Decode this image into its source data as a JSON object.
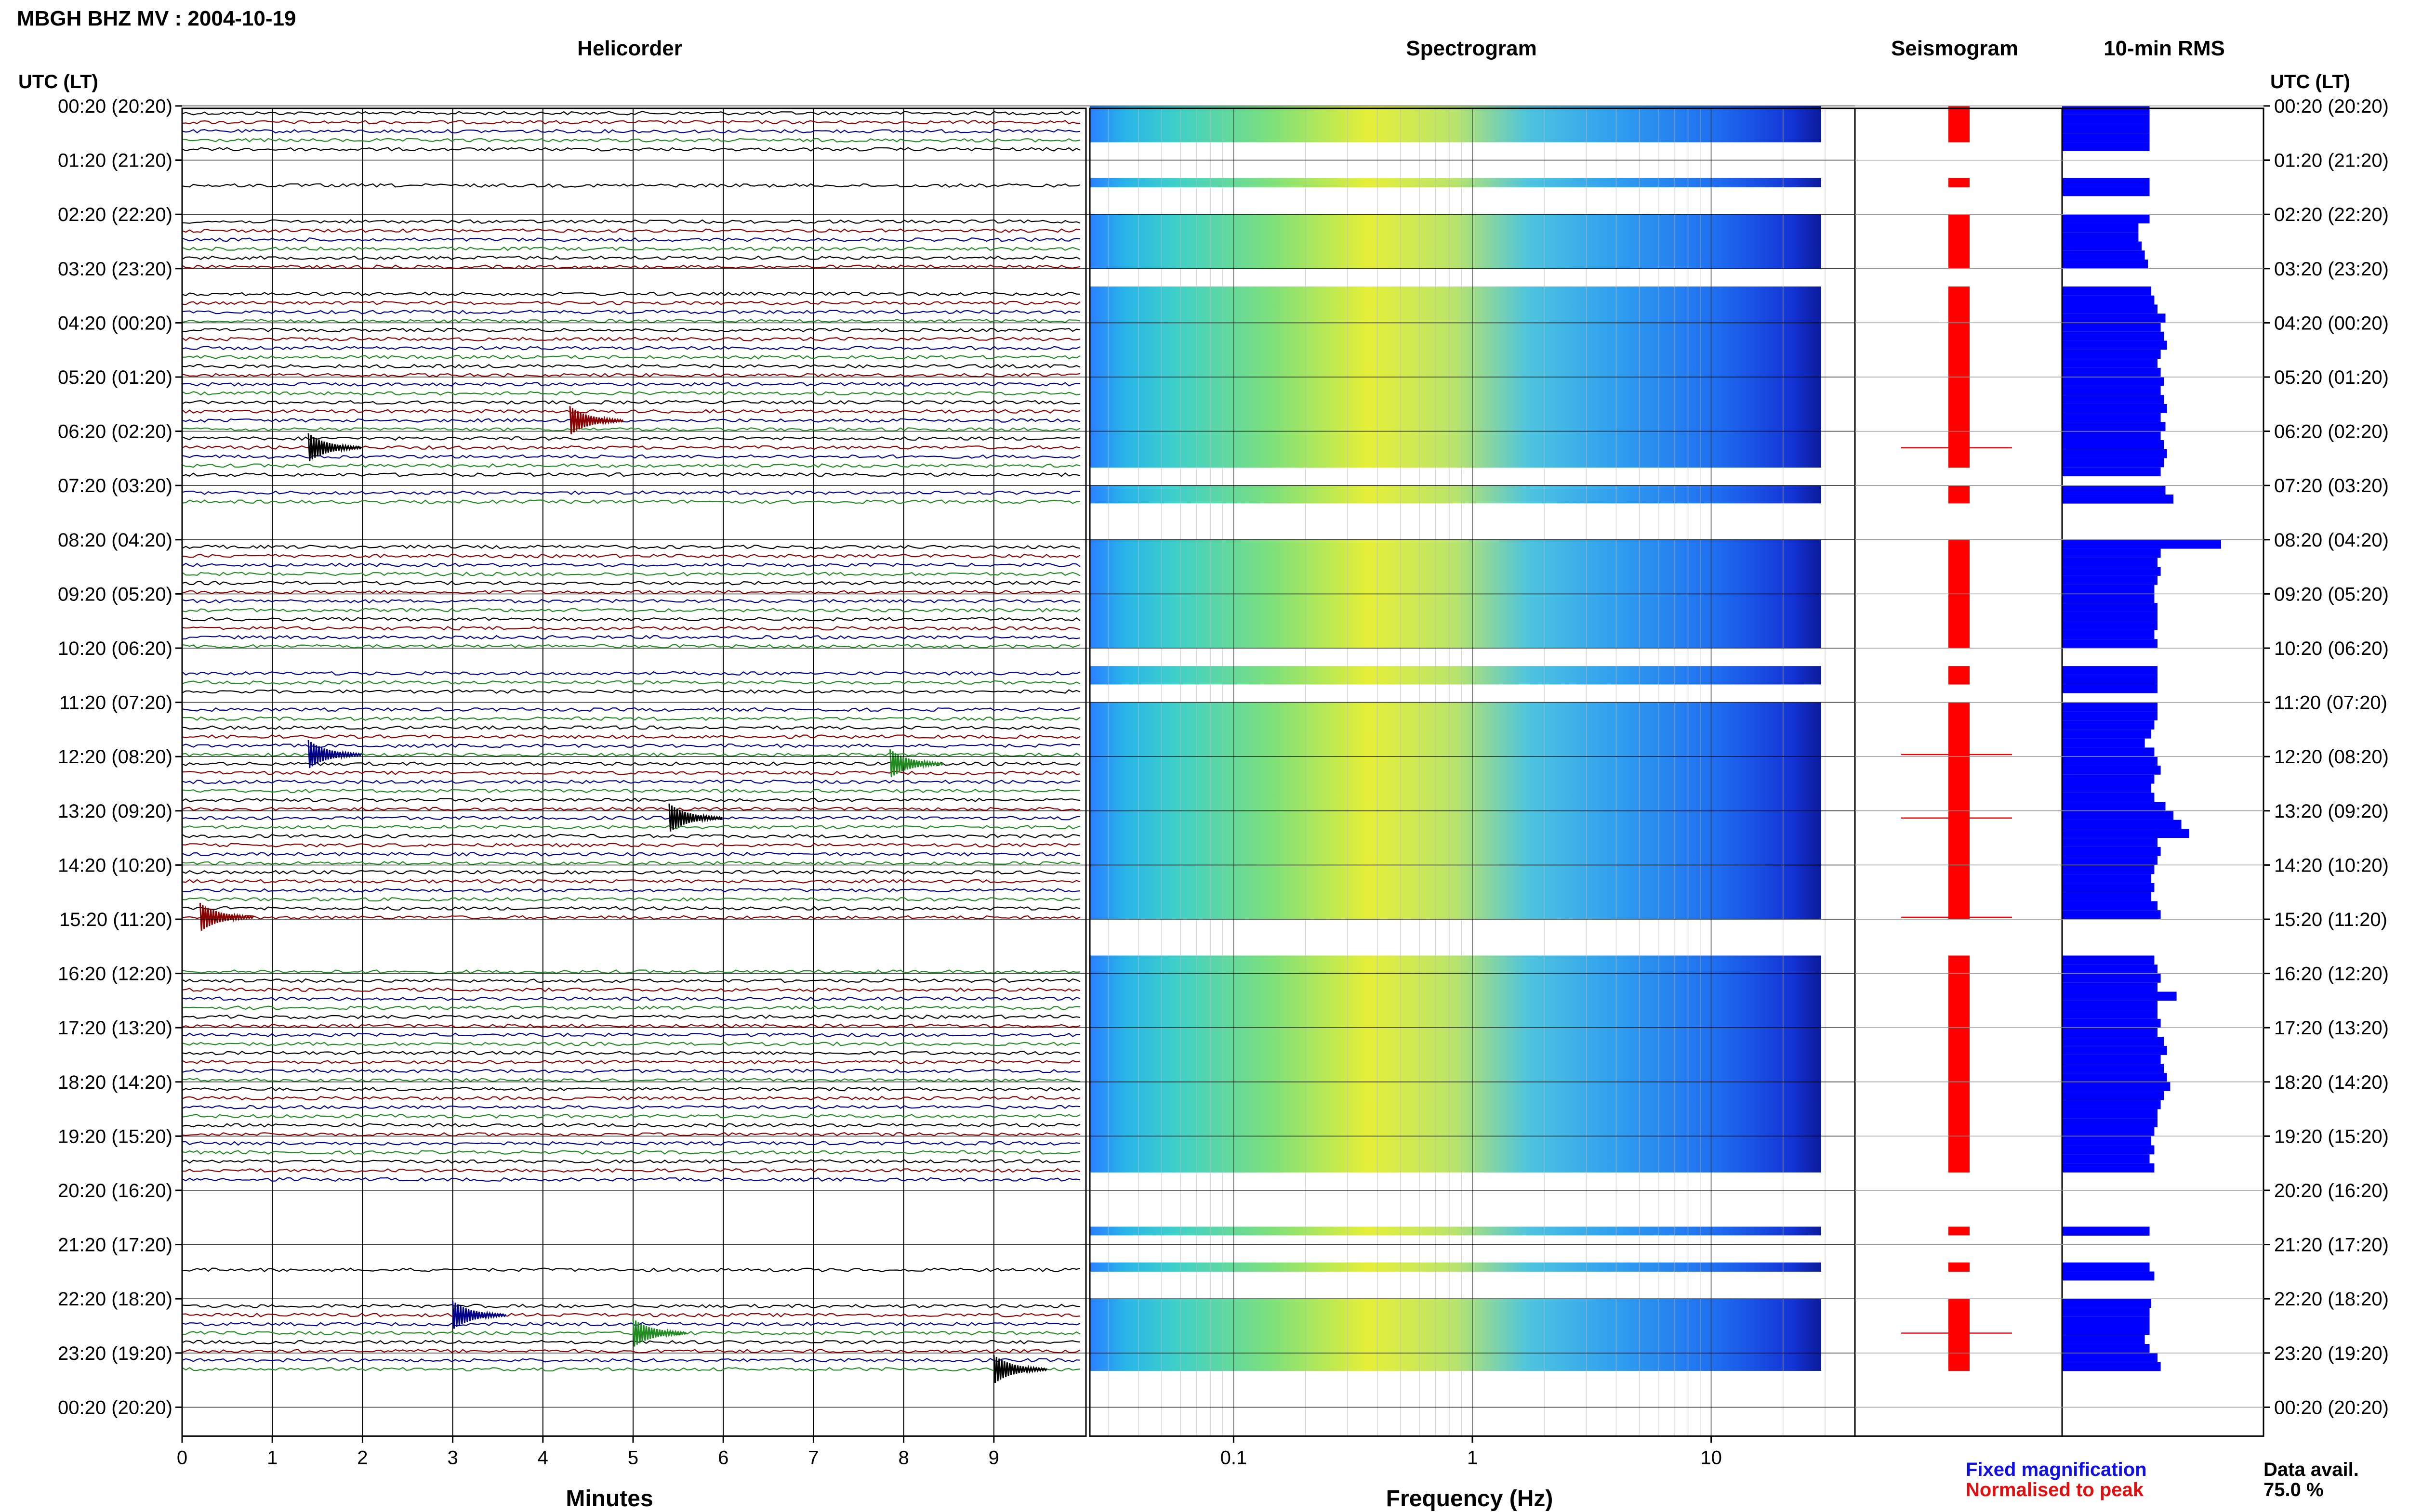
{
  "header": {
    "title": "MBGH BHZ MV : 2004-10-19",
    "utc_label": "UTC (LT)"
  },
  "panels": {
    "helicorder": "Helicorder",
    "spectrogram": "Spectrogram",
    "seismogram": "Seismogram",
    "rms": "10-min RMS"
  },
  "footer": {
    "helicorder_xlabel": "Minutes",
    "spectrogram_xlabel": "Frequency (Hz)",
    "legend_fixed": "Fixed magnification",
    "legend_normalised": "Normalised to peak",
    "data_avail_label": "Data avail.",
    "data_avail_value": "75.0 %"
  },
  "colors": {
    "trace_black": "#000000",
    "trace_red": "#8b0000",
    "trace_blue": "#00008b",
    "trace_green": "#228b22",
    "seismogram": "#ff0000",
    "rms_bar": "#0000ff",
    "legend_fixed": "#1010e0",
    "legend_normalised": "#e01010"
  },
  "chart_data": {
    "type": "helicorder",
    "hour_labels": [
      "00:20 (20:20)",
      "01:20 (21:20)",
      "02:20 (22:20)",
      "03:20 (23:20)",
      "04:20 (00:20)",
      "05:20 (01:20)",
      "06:20 (02:20)",
      "07:20 (03:20)",
      "08:20 (04:20)",
      "09:20 (05:20)",
      "10:20 (06:20)",
      "11:20 (07:20)",
      "12:20 (08:20)",
      "13:20 (09:20)",
      "14:20 (10:20)",
      "15:20 (11:20)",
      "16:20 (12:20)",
      "17:20 (13:20)",
      "18:20 (14:20)",
      "19:20 (15:20)",
      "20:20 (16:20)",
      "21:20 (17:20)",
      "22:20 (18:20)",
      "23:20 (19:20)",
      "00:20 (20:20)"
    ],
    "helicorder_minutes": {
      "xlim": [
        0,
        10
      ],
      "ticks": [
        0,
        1,
        2,
        3,
        4,
        5,
        6,
        7,
        8,
        9
      ]
    },
    "spectrogram_frequency": {
      "scale": "log",
      "xlim": [
        0.025,
        40
      ],
      "ticks": [
        0.1,
        1,
        10
      ]
    },
    "data_segments_hours": [
      [
        0,
        0.67
      ],
      [
        1.33,
        1.5
      ],
      [
        2.0,
        3.0
      ],
      [
        3.33,
        6.67
      ],
      [
        7.0,
        7.33
      ],
      [
        8.0,
        10.0
      ],
      [
        10.33,
        10.67
      ],
      [
        11.0,
        15.0
      ],
      [
        15.67,
        19.67
      ],
      [
        20.67,
        20.83
      ],
      [
        21.33,
        21.5
      ],
      [
        22.0,
        23.33
      ]
    ],
    "events": [
      {
        "hour": 6.17,
        "minute": 1.4
      },
      {
        "hour": 5.67,
        "minute": 4.3
      },
      {
        "hour": 11.83,
        "minute": 1.4
      },
      {
        "hour": 12.0,
        "minute": 7.85
      },
      {
        "hour": 13.0,
        "minute": 5.4
      },
      {
        "hour": 14.83,
        "minute": 0.2
      },
      {
        "hour": 22.17,
        "minute": 3.0
      },
      {
        "hour": 22.5,
        "minute": 5.0
      },
      {
        "hour": 23.17,
        "minute": 9.0
      }
    ],
    "rms_hourly": [
      0.55,
      0.55,
      0.55,
      0.55,
      0.55,
      0.55,
      0.55,
      0.55,
      0.48,
      0.48,
      0.5,
      0.52,
      0.54,
      0.56,
      0.58,
      0.6,
      0.65,
      0.62,
      0.64,
      0.66,
      0.62,
      0.6,
      0.62,
      0.64,
      0.62,
      0.64,
      0.66,
      0.62,
      0.65,
      0.62,
      0.64,
      0.66,
      0.64,
      0.62,
      0.65,
      0.7,
      1.0,
      0.62,
      0.6,
      0.62,
      0.6,
      0.58,
      0.58,
      0.6,
      0.6,
      0.6,
      0.58,
      0.6,
      0.6,
      0.6,
      0.6,
      0.6,
      0.6,
      0.58,
      0.56,
      0.52,
      0.58,
      0.6,
      0.62,
      0.58,
      0.56,
      0.58,
      0.65,
      0.7,
      0.75,
      0.8,
      0.6,
      0.62,
      0.6,
      0.58,
      0.56,
      0.58,
      0.56,
      0.6,
      0.62,
      0.58,
      0.6,
      0.62,
      0.6,
      0.72,
      0.6,
      0.6,
      0.62,
      0.6,
      0.64,
      0.66,
      0.62,
      0.64,
      0.66,
      0.68,
      0.64,
      0.62,
      0.6,
      0.6,
      0.58,
      0.56,
      0.58,
      0.55,
      0.58,
      0.55,
      0.55,
      0.58,
      0.56,
      0.55,
      0.55,
      0.55,
      0.52,
      0.55,
      0.6,
      0.62,
      0.7,
      0.72,
      0.65,
      0.62
    ]
  }
}
